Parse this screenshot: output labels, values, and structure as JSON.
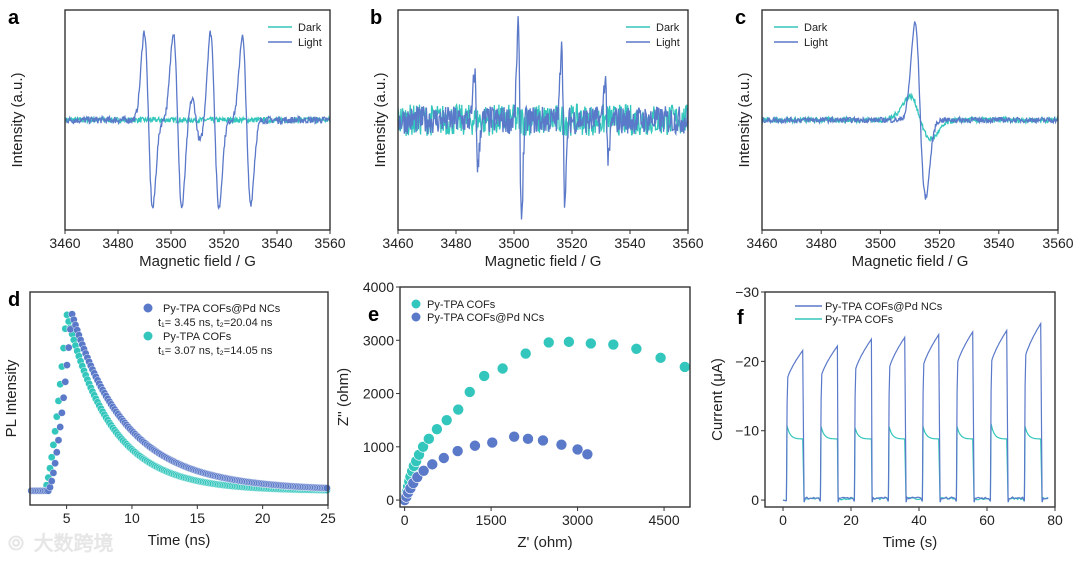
{
  "colors": {
    "teal": "#33c6bc",
    "blue": "#5b79c9",
    "axis": "#333333"
  },
  "watermark": "大数跨境",
  "chart_data": [
    {
      "panel": "a",
      "type": "line",
      "xlabel": "Magnetic field / G",
      "ylabel": "Intensity (a.u.)",
      "xlim": [
        3460,
        3560
      ],
      "ylim": [
        -1.25,
        1.25
      ],
      "xticks": [
        3460,
        3480,
        3500,
        3520,
        3540,
        3560
      ],
      "legend": {
        "placement": "top-right"
      },
      "series": [
        {
          "name": "Dark",
          "color": "teal",
          "noise": 0.03,
          "lines": []
        },
        {
          "name": "Light",
          "color": "blue",
          "noise": 0.04,
          "width": 1.6,
          "lines": [
            {
              "center": 3491.5,
              "amp": 1.0
            },
            {
              "center": 3502.5,
              "amp": 1.0
            },
            {
              "center": 3509.5,
              "amp": 0.25
            },
            {
              "center": 3516.5,
              "amp": 1.0
            },
            {
              "center": 3528.5,
              "amp": 0.95
            }
          ]
        }
      ]
    },
    {
      "panel": "b",
      "type": "line",
      "xlabel": "Magnetic field / G",
      "ylabel": "Intensity (a.u.)",
      "xlim": [
        3460,
        3560
      ],
      "ylim": [
        -1.25,
        1.25
      ],
      "xticks": [
        3460,
        3480,
        3500,
        3520,
        3540,
        3560
      ],
      "legend": {
        "placement": "top-right"
      },
      "series": [
        {
          "name": "Dark",
          "color": "teal",
          "noise": 0.18,
          "lines": []
        },
        {
          "name": "Light",
          "color": "blue",
          "noise": 0.16,
          "width": 0.6,
          "lines": [
            {
              "center": 3487,
              "amp": 0.55
            },
            {
              "center": 3502,
              "amp": 1.1
            },
            {
              "center": 3517,
              "amp": 0.95
            },
            {
              "center": 3532,
              "amp": 0.5
            }
          ]
        }
      ]
    },
    {
      "panel": "c",
      "type": "line",
      "xlabel": "Magnetic field / G",
      "ylabel": "Intensity (a.u.)",
      "xlim": [
        3460,
        3560
      ],
      "ylim": [
        -1.25,
        1.25
      ],
      "xticks": [
        3460,
        3480,
        3500,
        3520,
        3540,
        3560
      ],
      "legend": {
        "placement": "top-left"
      },
      "series": [
        {
          "name": "Dark",
          "color": "teal",
          "noise": 0.03,
          "width": 3.5,
          "lines": [
            {
              "center": 3513.5,
              "amp": 0.27
            }
          ]
        },
        {
          "name": "Light",
          "color": "blue",
          "noise": 0.03,
          "width": 1.8,
          "lines": [
            {
              "center": 3513.5,
              "amp": 1.1
            }
          ]
        }
      ]
    },
    {
      "panel": "d",
      "type": "scatter",
      "xlabel": "Time (ns)",
      "ylabel": "PL Intensity",
      "xlim": [
        2.2,
        25
      ],
      "ylim": [
        -0.08,
        1.12
      ],
      "xticks": [
        5,
        10,
        15,
        20,
        25
      ],
      "legend": {
        "placement": "top-right"
      },
      "series": [
        {
          "name": "Py-TPA COFs@Pd NCs",
          "note": "t₁= 3.45 ns, t₂=20.04  ns",
          "color": "blue",
          "onset": 3.6,
          "peak_time": 5.4,
          "tau1": 3.45,
          "tau2": 20.04
        },
        {
          "name": "Py-TPA COFs",
          "note": "t₁= 3.07 ns, t₂=14.05  ns",
          "color": "teal",
          "onset": 3.3,
          "peak_time": 5.0,
          "tau1": 3.07,
          "tau2": 14.05
        }
      ]
    },
    {
      "panel": "e",
      "type": "scatter",
      "xlabel": "Z' (ohm)",
      "ylabel": "Z'' (ohm)",
      "xlim": [
        -80,
        4950
      ],
      "ylim": [
        -130,
        4000
      ],
      "xticks": [
        0,
        1500,
        3000,
        4500
      ],
      "yticks": [
        0,
        1000,
        2000,
        3000,
        4000
      ],
      "legend": {
        "placement": "top-left"
      },
      "series": [
        {
          "name": "Py-TPA COFs",
          "color": "teal",
          "points": [
            [
              0,
              0
            ],
            [
              20,
              80
            ],
            [
              40,
              160
            ],
            [
              60,
              250
            ],
            [
              80,
              350
            ],
            [
              100,
              440
            ],
            [
              130,
              540
            ],
            [
              160,
              640
            ],
            [
              200,
              730
            ],
            [
              250,
              850
            ],
            [
              320,
              1000
            ],
            [
              420,
              1150
            ],
            [
              560,
              1330
            ],
            [
              730,
              1500
            ],
            [
              930,
              1700
            ],
            [
              1130,
              2030
            ],
            [
              1380,
              2330
            ],
            [
              1700,
              2470
            ],
            [
              2100,
              2750
            ],
            [
              2500,
              2960
            ],
            [
              2850,
              2970
            ],
            [
              3230,
              2940
            ],
            [
              3620,
              2920
            ],
            [
              4020,
              2840
            ],
            [
              4440,
              2670
            ],
            [
              4860,
              2500
            ]
          ]
        },
        {
          "name": "Py-TPA COFs@Pd NCs",
          "color": "blue",
          "points": [
            [
              0,
              0
            ],
            [
              30,
              60
            ],
            [
              60,
              140
            ],
            [
              100,
              220
            ],
            [
              150,
              320
            ],
            [
              220,
              430
            ],
            [
              330,
              550
            ],
            [
              480,
              670
            ],
            [
              680,
              790
            ],
            [
              920,
              920
            ],
            [
              1220,
              1020
            ],
            [
              1520,
              1080
            ],
            [
              1900,
              1190
            ],
            [
              2140,
              1150
            ],
            [
              2400,
              1120
            ],
            [
              2720,
              1040
            ],
            [
              3000,
              950
            ],
            [
              3170,
              860
            ]
          ]
        }
      ]
    },
    {
      "panel": "f",
      "type": "line",
      "xlabel": "Time (s)",
      "ylabel": "Current (μA)",
      "xlim": [
        -5.3,
        80
      ],
      "ylim": [
        1,
        -30
      ],
      "xticks": [
        0,
        20,
        40,
        60,
        80
      ],
      "yticks": [
        0,
        -10,
        -20,
        -30
      ],
      "ytick_labels": [
        "0",
        "−10",
        "−20",
        "−30"
      ],
      "legend": {
        "placement": "top-left"
      },
      "light_on": [
        1,
        11,
        21,
        31,
        41,
        51,
        61,
        71
      ],
      "light_off": [
        6,
        16,
        26,
        36,
        46,
        56,
        66,
        76
      ],
      "series": [
        {
          "name": "Py-TPA COFs@Pd NCs",
          "color": "blue",
          "cycle_end_current": [
            -21.7,
            -22.2,
            -23.2,
            -23.6,
            -24.0,
            -24.4,
            -24.6,
            -25.6
          ]
        },
        {
          "name": "Py-TPA COFs",
          "color": "teal",
          "spike_current": [
            -10.7,
            -10.6,
            -10.4,
            -10.6,
            -10.6,
            -10.6,
            -11.0,
            -10.6
          ],
          "steady_current": -8.8
        }
      ]
    }
  ]
}
